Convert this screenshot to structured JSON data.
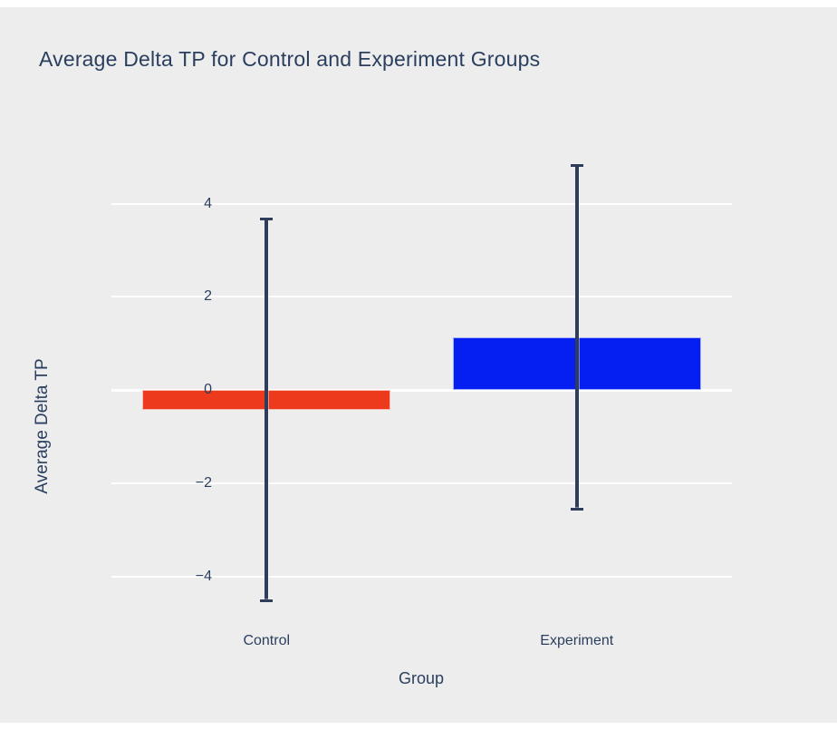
{
  "page": {
    "background_color": "#FFFFFF",
    "paper_color": "#EDEDED",
    "text_color": "#2A3F5F"
  },
  "chart_data": {
    "type": "bar",
    "title": "Average Delta TP for Control and Experiment Groups",
    "xlabel": "Group",
    "ylabel": "Average Delta TP",
    "categories": [
      "Control",
      "Experiment"
    ],
    "values": [
      -0.42,
      1.13
    ],
    "error_plus": [
      4.12,
      3.72
    ],
    "error_minus": [
      4.12,
      3.72
    ],
    "bar_colors": [
      "#ED391C",
      "#051EF2"
    ],
    "error_bar_color": "#2E3D59",
    "yticks": [
      -4,
      -2,
      0,
      2,
      4
    ],
    "ylim": [
      -5.05,
      5.45
    ],
    "grid": true,
    "grid_color": "#FFFFFF",
    "zeroline_color": "#FFFFFF",
    "legend_position": "none",
    "bar_width_fraction": 0.8
  }
}
